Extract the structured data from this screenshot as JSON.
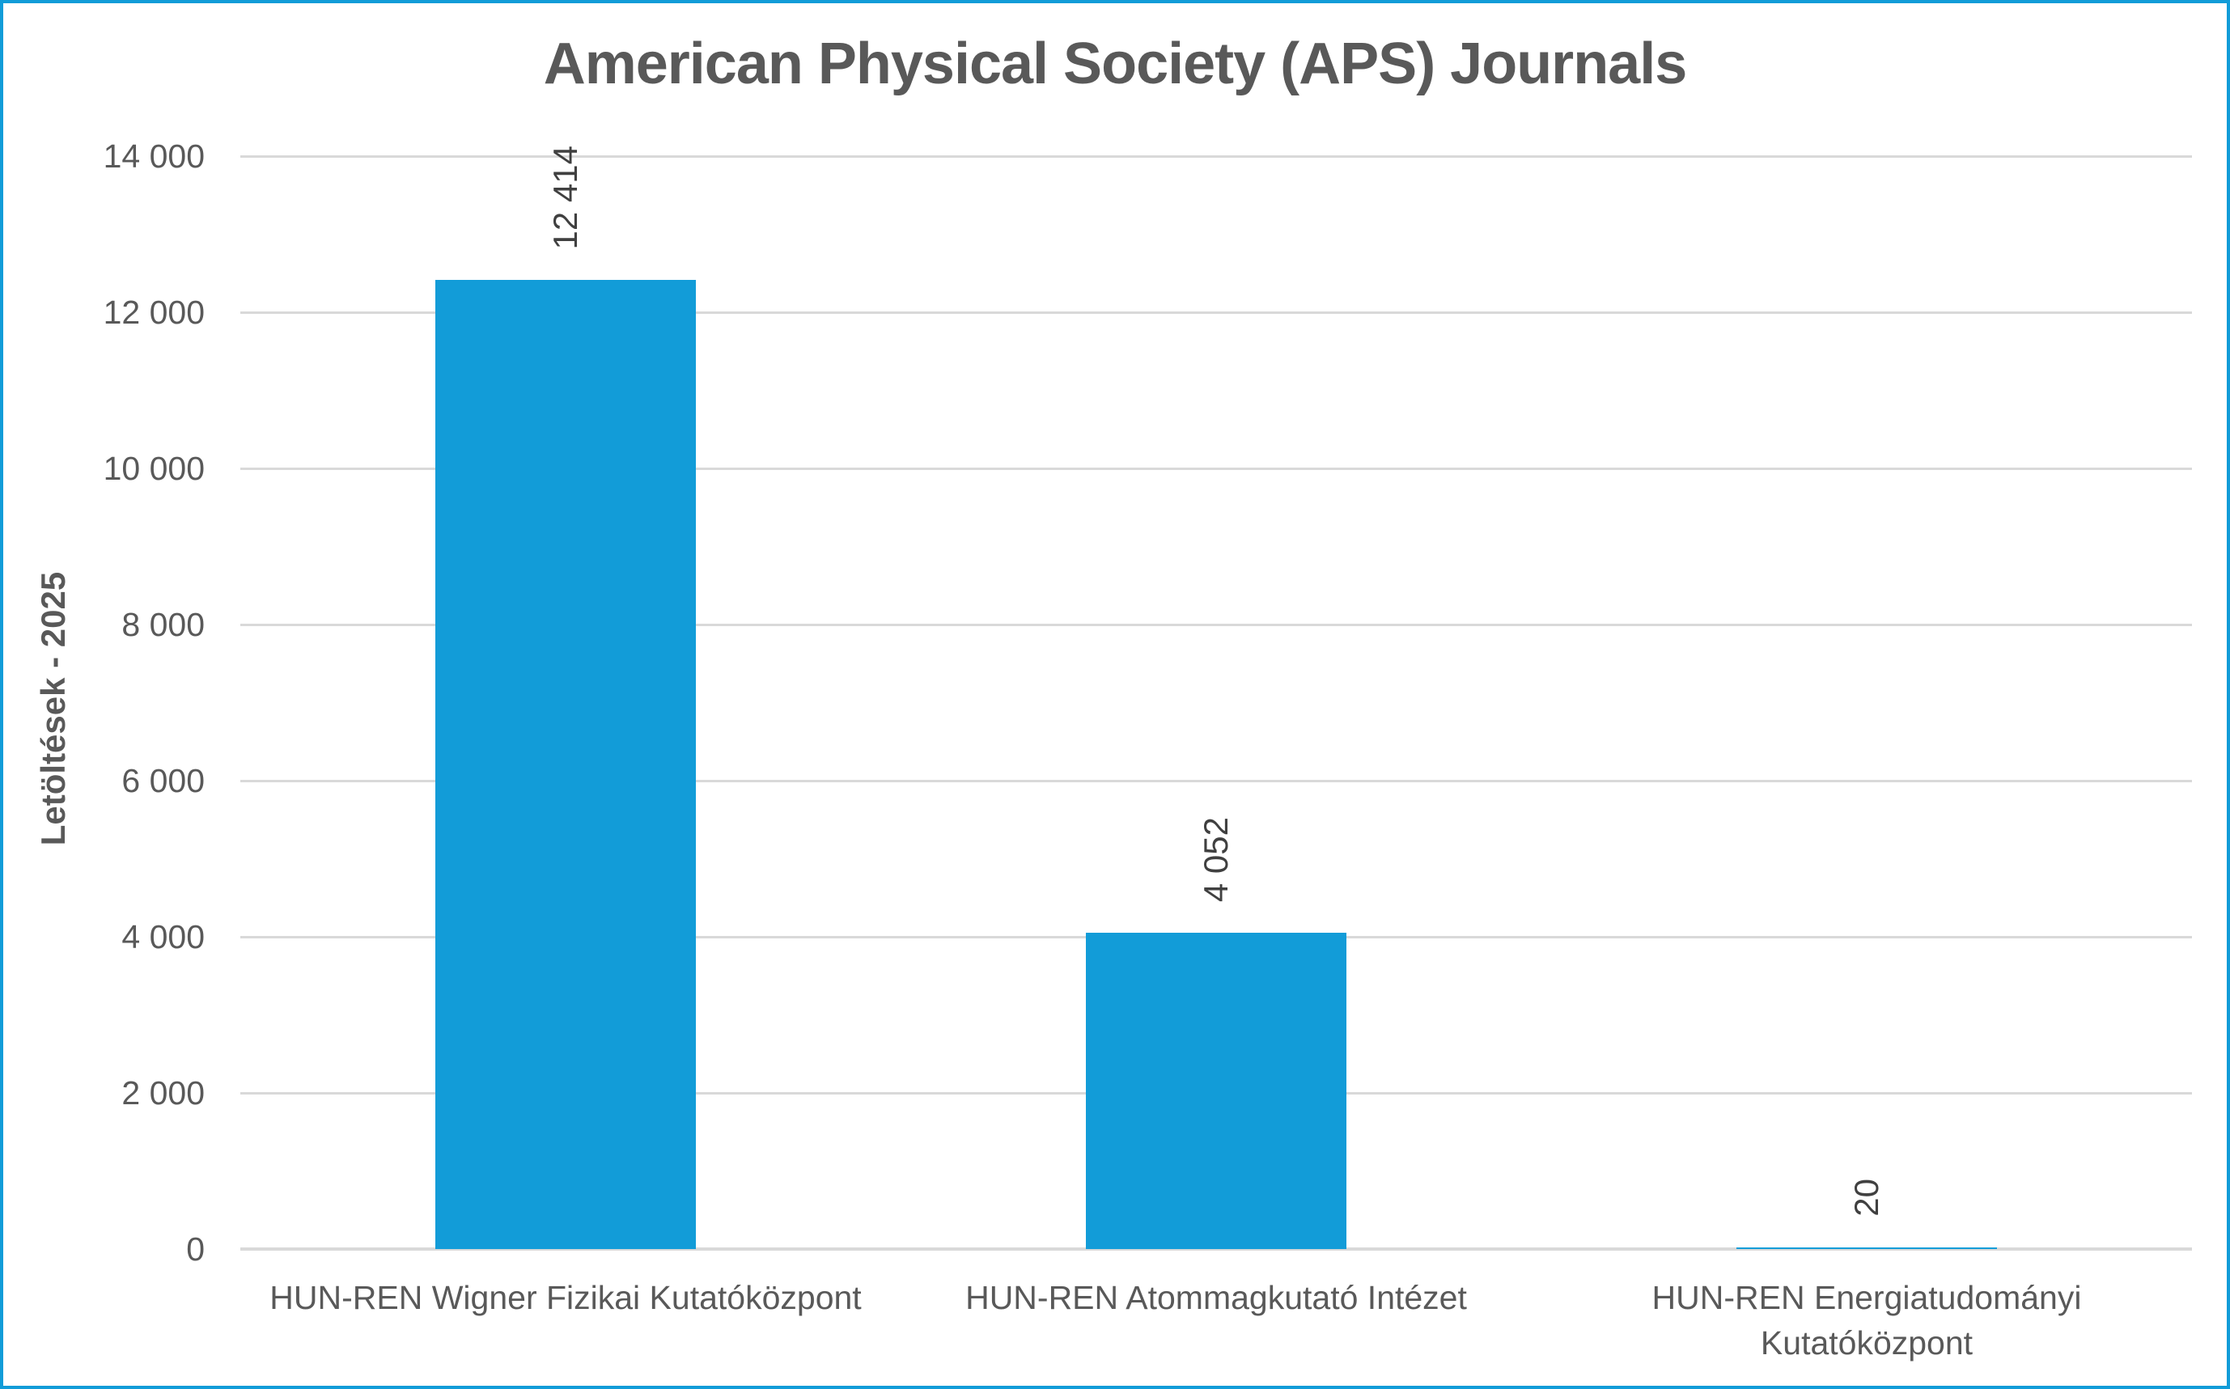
{
  "chart": {
    "title": "American Physical Society (APS) Journals",
    "y_axis_title": "Letöltések - 2025",
    "colors": {
      "accent_blue": "#129CD8",
      "bar_fill": "#129CD8",
      "frame_border": "#129CD8",
      "gridline": "#D9D9D9",
      "axis_text": "#595959",
      "title_text": "#595959",
      "value_label_text": "#404040",
      "background": "#FFFFFF"
    }
  },
  "chart_data": {
    "type": "bar",
    "title": "American Physical Society (APS) Journals",
    "categories": [
      "HUN-REN Wigner Fizikai Kutatóközpont",
      "HUN-REN Atommagkutató Intézet",
      "HUN-REN Energiatudományi Kutatóközpont"
    ],
    "category_label_lines": [
      [
        "HUN-REN Wigner Fizikai Kutatóközpont"
      ],
      [
        "HUN-REN Atommagkutató Intézet"
      ],
      [
        "HUN-REN Energiatudományi",
        "Kutatóközpont"
      ]
    ],
    "values": [
      12414,
      4052,
      20
    ],
    "value_labels": [
      "12 414",
      "4 052",
      "20"
    ],
    "value_label_rotation_deg": -90,
    "xlabel": "",
    "ylabel": "Letöltések - 2025",
    "ylim": [
      0,
      14000
    ],
    "ytick_step": 2000,
    "ytick_labels": [
      "0",
      "2 000",
      "4 000",
      "6 000",
      "8 000",
      "10 000",
      "12 000",
      "14 000"
    ],
    "grid": "horizontal",
    "legend": "none",
    "bar_color": "#129CD8"
  }
}
